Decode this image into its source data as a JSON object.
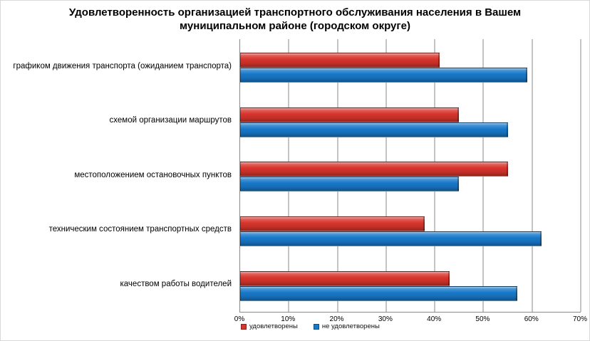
{
  "title": {
    "line1": "Удовлетворенность организацией транспортного обслуживания населения в Вашем",
    "line2": "муниципальном районе (городском округе)"
  },
  "chart_data": {
    "type": "bar",
    "orientation": "horizontal",
    "title": "Удовлетворенность организацией транспортного обслуживания населения в Вашем муниципальном районе (городском округе)",
    "categories": [
      "графиком движения транспорта (ожиданием транспорта)",
      "схемой организации маршрутов",
      "местоположением остановочных пунктов",
      "техническим состоянием транспортных средств",
      "качеством работы водителей"
    ],
    "series": [
      {
        "name": "удовлетворены",
        "color": "#d8352c",
        "values": [
          41,
          45,
          55,
          38,
          43
        ]
      },
      {
        "name": "не удовлетворены",
        "color": "#1879ca",
        "values": [
          59,
          55,
          45,
          62,
          57
        ]
      }
    ],
    "x_ticks": [
      "0%",
      "10%",
      "20%",
      "30%",
      "40%",
      "50%",
      "60%",
      "70%"
    ],
    "xlim": [
      0,
      70
    ],
    "grid": true,
    "gridline_color": "#8a8a8a",
    "legend_position": "bottom-left",
    "background": "#ffffff"
  }
}
